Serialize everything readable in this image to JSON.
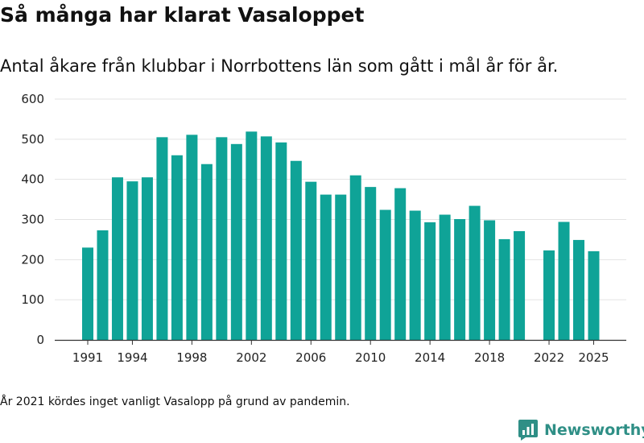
{
  "chart_data": {
    "type": "bar",
    "title": "Så många har klarat Vasaloppet",
    "subtitle": "Antal åkare från klubbar i Norrbottens län som gått i mål år för år.",
    "xlabel": "",
    "ylabel": "",
    "ylim": [
      0,
      600
    ],
    "yticks": [
      0,
      100,
      200,
      300,
      400,
      500,
      600
    ],
    "xticks": [
      1991,
      1994,
      1998,
      2002,
      2006,
      2010,
      2014,
      2018,
      2022,
      2025
    ],
    "grid": true,
    "bar_color": "#0fa397",
    "categories": [
      1991,
      1992,
      1993,
      1994,
      1995,
      1996,
      1997,
      1998,
      1999,
      2000,
      2001,
      2002,
      2003,
      2004,
      2005,
      2006,
      2007,
      2008,
      2009,
      2010,
      2011,
      2012,
      2013,
      2014,
      2015,
      2016,
      2017,
      2018,
      2019,
      2020,
      2021,
      2022,
      2023,
      2024,
      2025
    ],
    "values": [
      230,
      273,
      405,
      395,
      405,
      505,
      460,
      511,
      438,
      505,
      488,
      519,
      507,
      492,
      446,
      394,
      362,
      362,
      410,
      381,
      324,
      378,
      322,
      293,
      312,
      301,
      334,
      298,
      251,
      271,
      null,
      223,
      294,
      249,
      221
    ],
    "footnote": "År 2021 kördes inget vanligt Vasalopp på grund av pandemin."
  },
  "brand": {
    "name": "Newsworthy",
    "icon": "newsworthy-logo-icon",
    "color": "#2f8f86"
  }
}
